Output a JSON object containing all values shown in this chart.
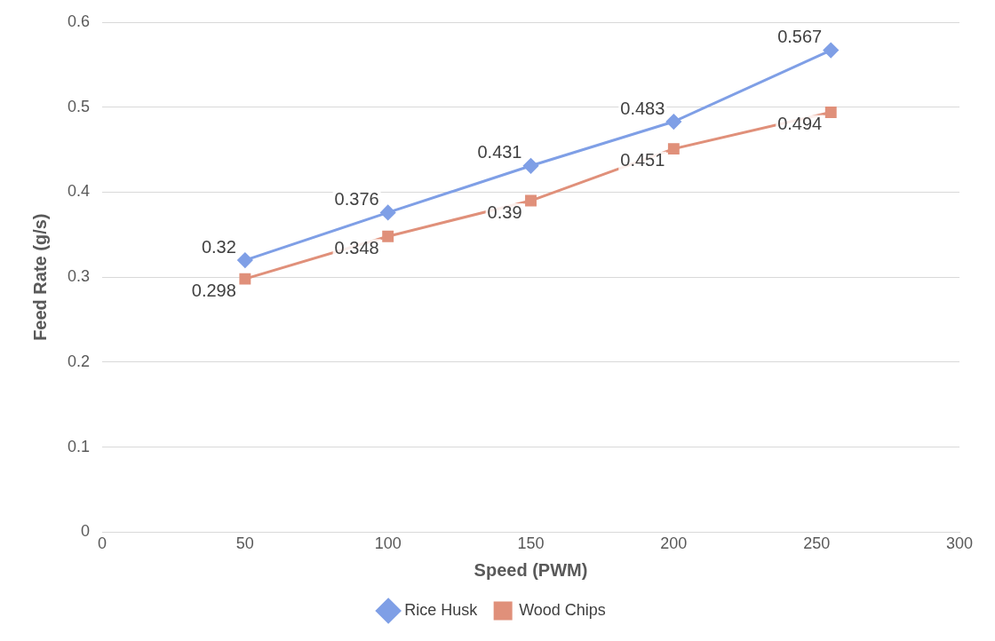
{
  "chart_data": {
    "type": "line",
    "xlabel": "Speed (PWM)",
    "ylabel": "Feed Rate (g/s)",
    "x": [
      50,
      100,
      150,
      200,
      255
    ],
    "series": [
      {
        "name": "Rice Husk",
        "color": "#7f9fe6",
        "marker": "diamond",
        "values": [
          0.32,
          0.376,
          0.431,
          0.483,
          0.567
        ]
      },
      {
        "name": "Wood Chips",
        "color": "#e0907a",
        "marker": "square",
        "values": [
          0.298,
          0.348,
          0.39,
          0.451,
          0.494
        ]
      }
    ],
    "xlim": [
      0,
      300
    ],
    "xticks": [
      0,
      50,
      100,
      150,
      200,
      250,
      300
    ],
    "ylim": [
      0,
      0.6
    ],
    "yticks": [
      0,
      0.1,
      0.2,
      0.3,
      0.4,
      0.5,
      0.6
    ],
    "grid": "y",
    "legend": "bottom",
    "data_labels": true,
    "line_style": "solid"
  }
}
